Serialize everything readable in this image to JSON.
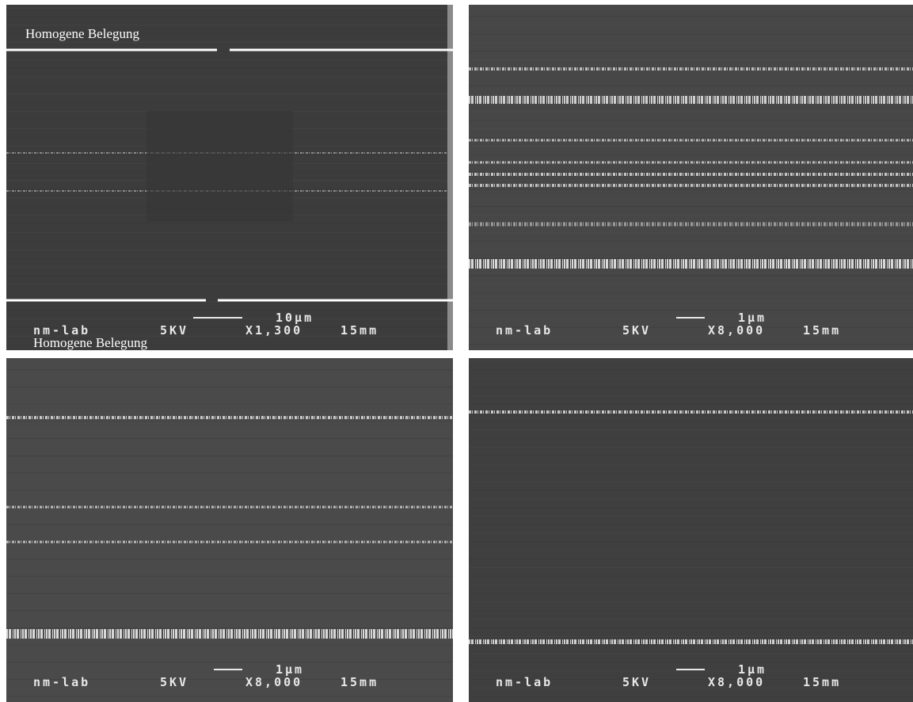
{
  "panels": [
    {
      "caption_top": "Homogene Belegung",
      "caption_bottom": "Homogene Belegung",
      "scale": "10µm",
      "lab": "nm-lab",
      "voltage": "5KV",
      "magnification": "X1,300",
      "distance": "15mm"
    },
    {
      "scale": "1µm",
      "lab": "nm-lab",
      "voltage": "5KV",
      "magnification": "X8,000",
      "distance": "15mm"
    },
    {
      "scale": "1µm",
      "lab": "nm-lab",
      "voltage": "5KV",
      "magnification": "X8,000",
      "distance": "15mm"
    },
    {
      "scale": "1µm",
      "lab": "nm-lab",
      "voltage": "5KV",
      "magnification": "X8,000",
      "distance": "15mm"
    }
  ]
}
